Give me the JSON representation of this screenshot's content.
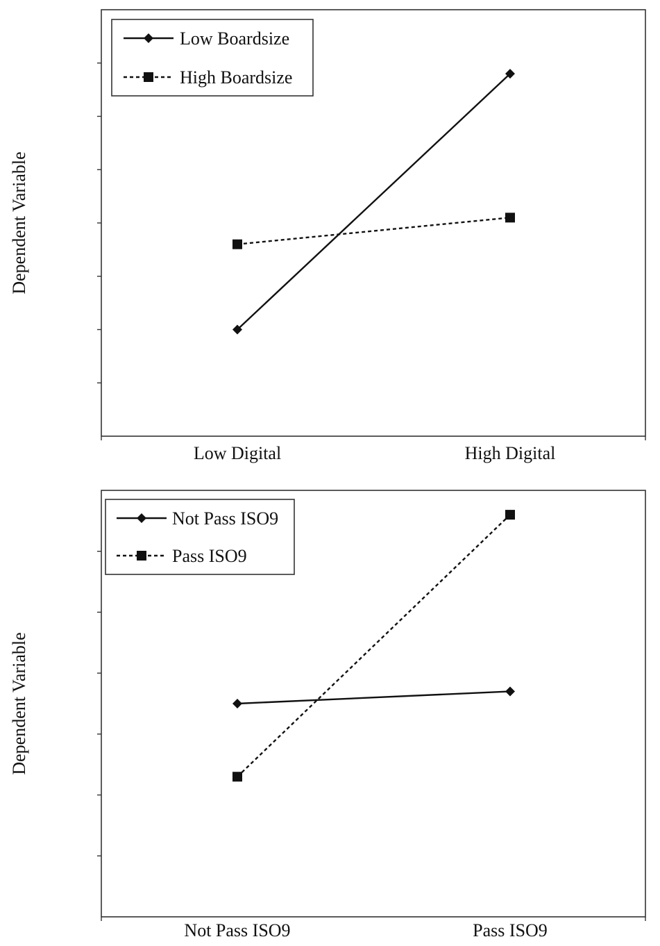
{
  "chart_data": [
    {
      "type": "line",
      "title": "",
      "xlabel": "",
      "ylabel": "Dependent Variable",
      "categories": [
        "Low Digital",
        "High Digital"
      ],
      "ylim": [
        0,
        8
      ],
      "y_ticks": [
        1,
        2,
        3,
        4,
        5,
        6,
        7
      ],
      "grid": false,
      "legend_position": "top-left",
      "series": [
        {
          "name": "Low Boardsize",
          "values": [
            2.0,
            6.8
          ],
          "line_style": "solid",
          "marker": "diamond",
          "color": "#111111"
        },
        {
          "name": "High Boardsize",
          "values": [
            3.6,
            4.1
          ],
          "line_style": "dashed",
          "marker": "square",
          "color": "#111111"
        }
      ]
    },
    {
      "type": "line",
      "title": "",
      "xlabel": "",
      "ylabel": "Dependent Variable",
      "categories": [
        "Not Pass ISO9",
        "Pass ISO9"
      ],
      "ylim": [
        0,
        7
      ],
      "y_ticks": [
        1,
        2,
        3,
        4,
        5,
        6
      ],
      "grid": false,
      "legend_position": "top-left",
      "series": [
        {
          "name": "Not Pass ISO9",
          "values": [
            3.5,
            3.7
          ],
          "line_style": "solid",
          "marker": "diamond",
          "color": "#111111"
        },
        {
          "name": "Pass ISO9",
          "values": [
            2.3,
            6.6
          ],
          "line_style": "dashed",
          "marker": "square",
          "color": "#111111"
        }
      ]
    }
  ]
}
